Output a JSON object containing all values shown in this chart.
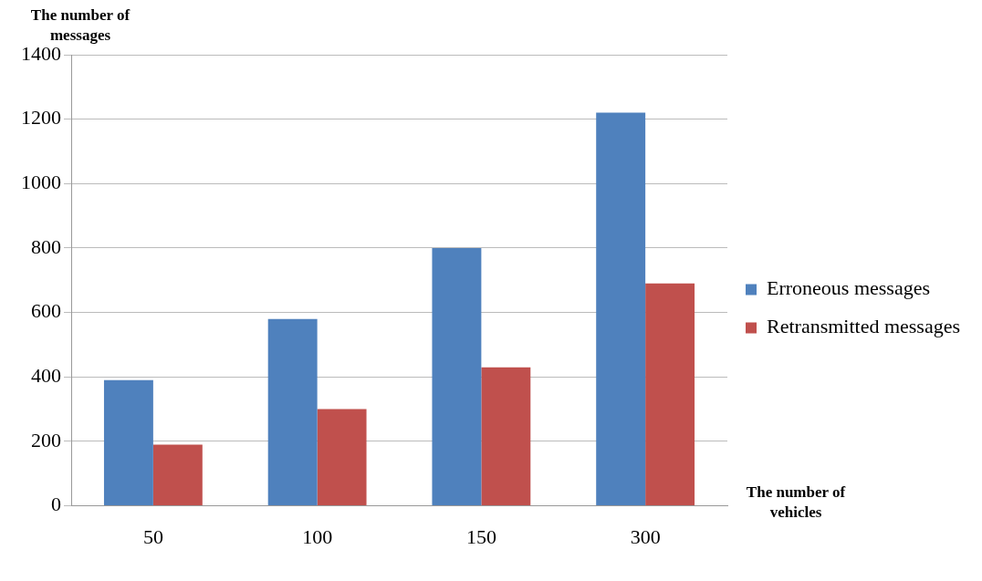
{
  "chart_data": {
    "type": "bar",
    "xlabel": "The number of vehicles",
    "ylabel": "The number of messages",
    "categories": [
      "50",
      "100",
      "150",
      "300"
    ],
    "series": [
      {
        "name": "Erroneous messages",
        "color": "#4f81bd",
        "values": [
          390,
          580,
          800,
          1220
        ]
      },
      {
        "name": "Retransmitted messages",
        "color": "#c0504d",
        "values": [
          190,
          300,
          430,
          690
        ]
      }
    ],
    "ylim": [
      0,
      1400
    ],
    "yticks": [
      0,
      200,
      400,
      600,
      800,
      1000,
      1200,
      1400
    ],
    "grid": "y",
    "legend": "right"
  }
}
